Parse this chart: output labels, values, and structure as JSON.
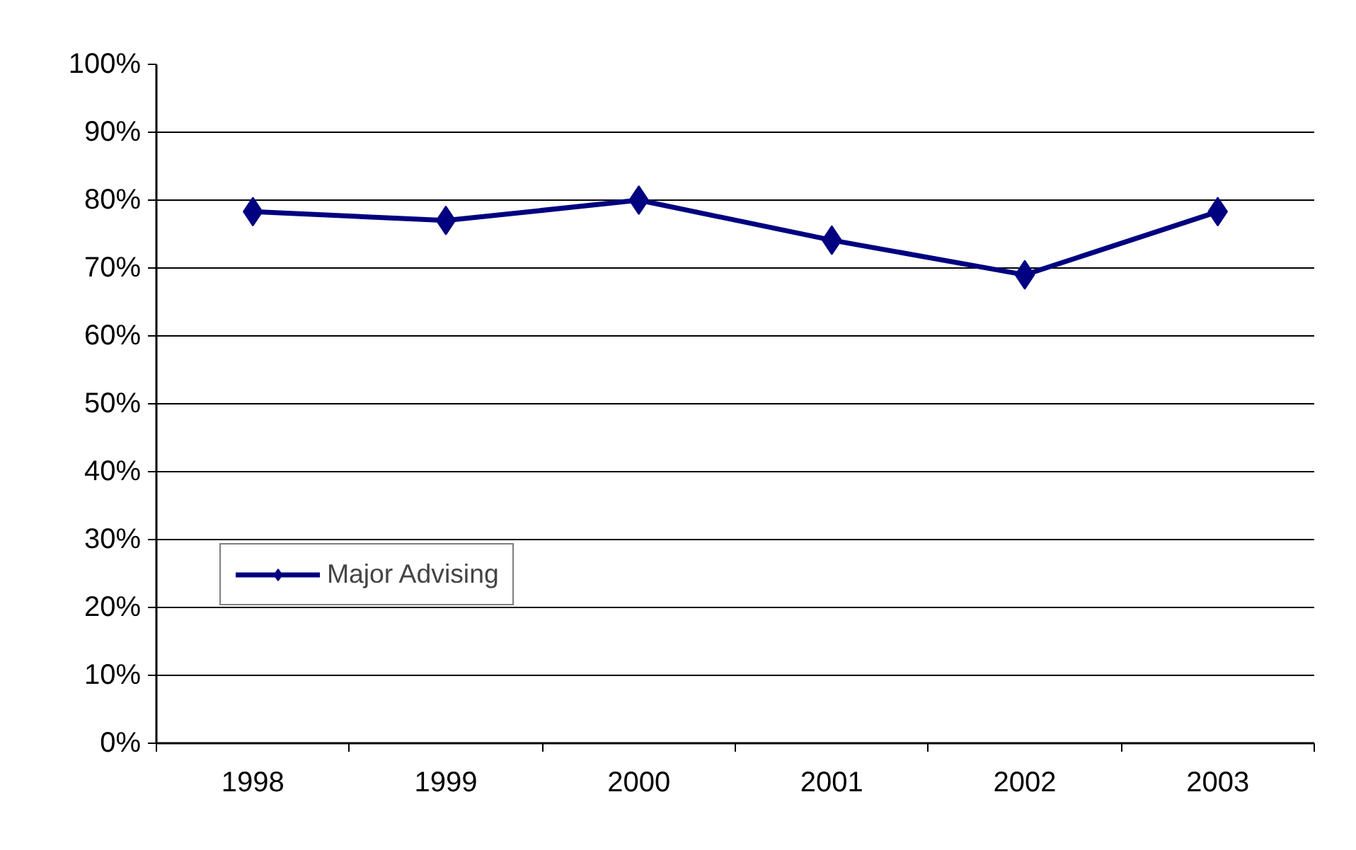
{
  "chart_data": {
    "type": "line",
    "categories": [
      "1998",
      "1999",
      "2000",
      "2001",
      "2002",
      "2003"
    ],
    "series": [
      {
        "name": "Major Advising",
        "color": "#000080",
        "values": [
          78.3,
          77,
          80,
          74.1,
          69,
          78.3
        ]
      }
    ],
    "ylim": [
      0,
      100
    ],
    "yticks": [
      {
        "value": 0,
        "label": "0%"
      },
      {
        "value": 10,
        "label": "10%"
      },
      {
        "value": 20,
        "label": "20%"
      },
      {
        "value": 30,
        "label": "30%"
      },
      {
        "value": 40,
        "label": "40%"
      },
      {
        "value": 50,
        "label": "50%"
      },
      {
        "value": 60,
        "label": "60%"
      },
      {
        "value": 70,
        "label": "70%"
      },
      {
        "value": 80,
        "label": "80%"
      },
      {
        "value": 90,
        "label": "90%"
      },
      {
        "value": 100,
        "label": "100%"
      }
    ],
    "grid": "y",
    "legend": "bottom left",
    "marker": "diamond",
    "line_style": "solid"
  }
}
